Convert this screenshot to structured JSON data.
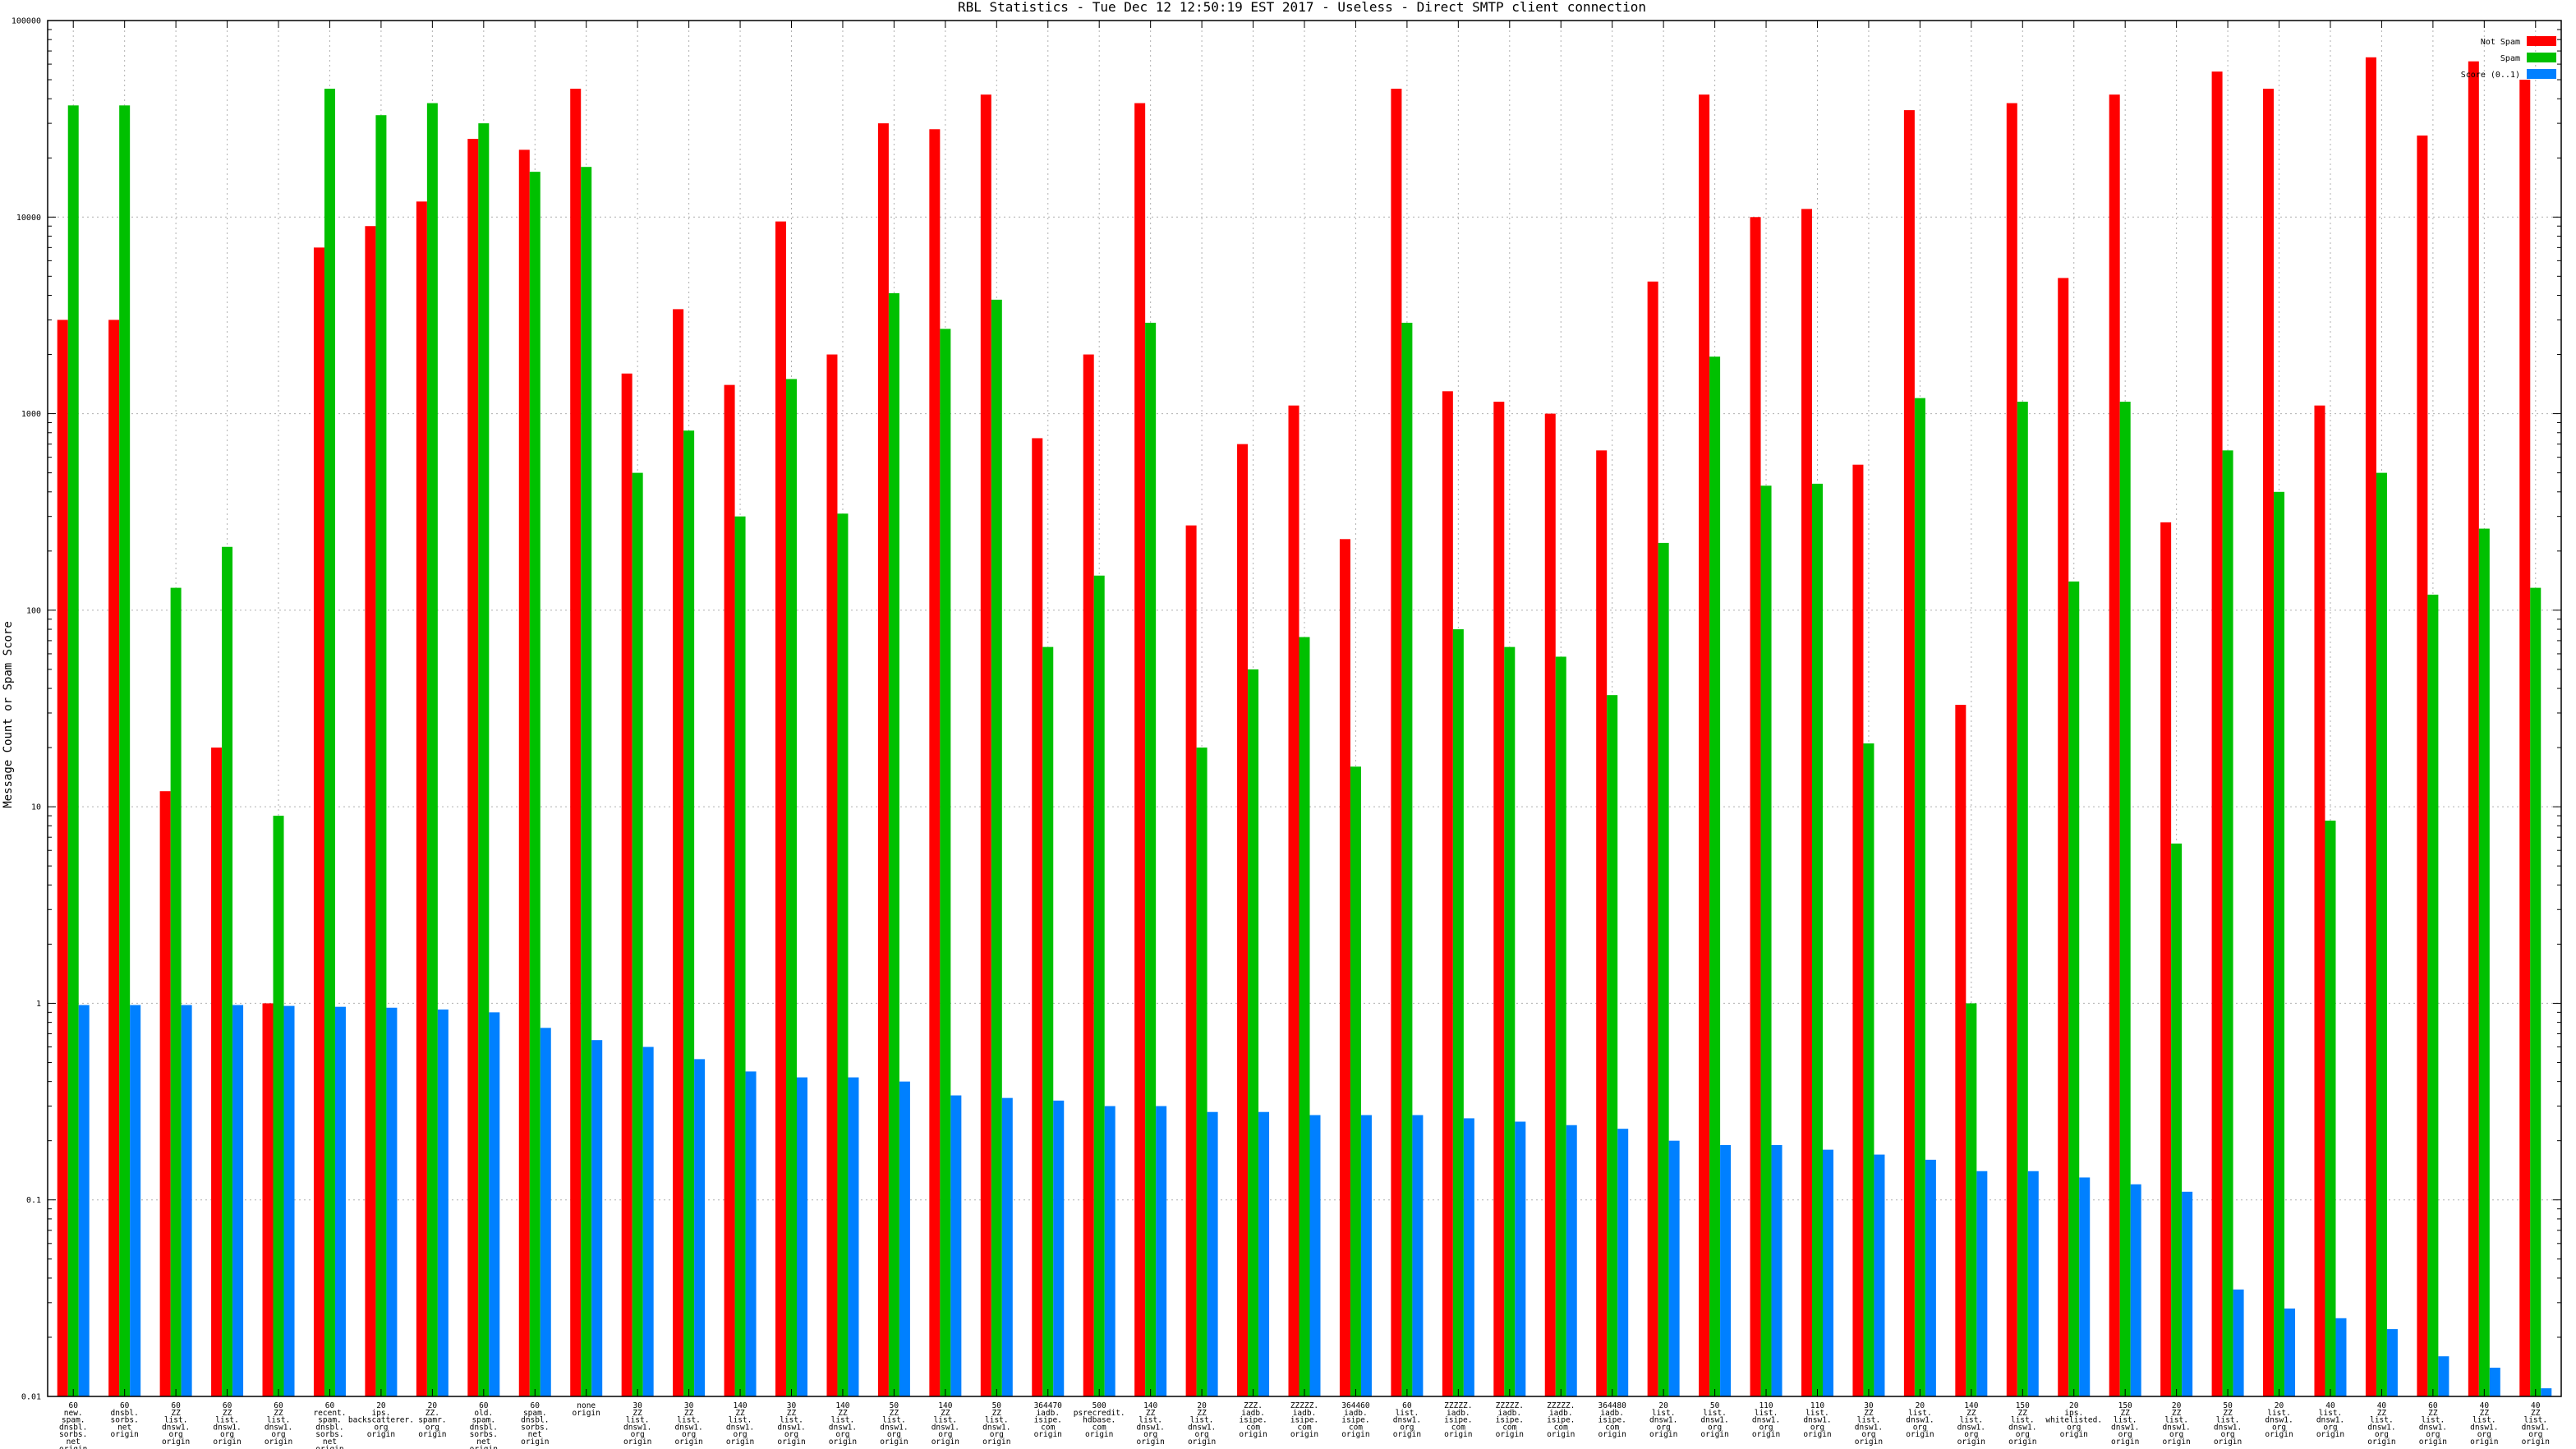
{
  "chart_data": {
    "type": "bar",
    "title": "RBL Statistics - Tue Dec 12 12:50:19 EST 2017 - Useless - Direct SMTP client connection",
    "xlabel": "",
    "ylabel": "Message Count or Spam Score",
    "yscale": "log",
    "ylim": [
      0.01,
      100000
    ],
    "y_ticks": [
      "0.01",
      "0.1",
      "1",
      "10",
      "100",
      "1000",
      "10000",
      "100000"
    ],
    "grid": true,
    "legend_position": "top-right",
    "series_colors": [
      "#ff0000",
      "#00c000",
      "#0080ff"
    ],
    "categories": [
      [
        "60",
        "new.",
        "spam.",
        "dnsbl.",
        "sorbs.",
        "net",
        "origin"
      ],
      [
        "60",
        "dnsbl.",
        "sorbs.",
        "net",
        "origin"
      ],
      [
        "60",
        "ZZ",
        "list.",
        "dnsw1.",
        "org",
        "origin"
      ],
      [
        "60",
        "ZZ",
        "list.",
        "dnsw1.",
        "org",
        "origin"
      ],
      [
        "60",
        "ZZ",
        "list.",
        "dnsw1.",
        "org",
        "origin"
      ],
      [
        "60",
        "recent.",
        "spam.",
        "dnsbl.",
        "sorbs.",
        "net",
        "origin"
      ],
      [
        "20",
        "ips.",
        "backscatterer.",
        "org",
        "origin"
      ],
      [
        "20",
        "ZZ.",
        "spamr.",
        "org",
        "origin"
      ],
      [
        "60",
        "old.",
        "spam.",
        "dnsbl.",
        "sorbs.",
        "net",
        "origin"
      ],
      [
        "60",
        "spam.",
        "dnsbl.",
        "sorbs.",
        "net",
        "origin"
      ],
      [
        "none",
        "origin"
      ],
      [
        "30",
        "ZZ",
        "list.",
        "dnsw1.",
        "org",
        "origin"
      ],
      [
        "30",
        "ZZ",
        "list.",
        "dnsw1.",
        "org",
        "origin"
      ],
      [
        "140",
        "ZZ",
        "list.",
        "dnsw1.",
        "org",
        "origin"
      ],
      [
        "30",
        "ZZ",
        "list.",
        "dnsw1.",
        "org",
        "origin"
      ],
      [
        "140",
        "ZZ",
        "list.",
        "dnsw1.",
        "org",
        "origin"
      ],
      [
        "50",
        "ZZ",
        "list.",
        "dnsw1.",
        "org",
        "origin"
      ],
      [
        "140",
        "ZZ",
        "list.",
        "dnsw1.",
        "org",
        "origin"
      ],
      [
        "50",
        "ZZ",
        "list.",
        "dnsw1.",
        "org",
        "origin"
      ],
      [
        "364470",
        "iadb.",
        "isipe.",
        "com",
        "origin"
      ],
      [
        "500",
        "psrecredit.",
        "hdbase.",
        "com",
        "origin"
      ],
      [
        "140",
        "ZZ",
        "list.",
        "dnsw1.",
        "org",
        "origin"
      ],
      [
        "20",
        "ZZ",
        "list.",
        "dnsw1.",
        "org",
        "origin"
      ],
      [
        "ZZZ.",
        "iadb.",
        "isipe.",
        "com",
        "origin"
      ],
      [
        "ZZZZZ.",
        "iadb.",
        "isipe.",
        "com",
        "origin"
      ],
      [
        "364460",
        "iadb.",
        "isipe.",
        "com",
        "origin"
      ],
      [
        "60",
        "list.",
        "dnsw1.",
        "org",
        "origin"
      ],
      [
        "ZZZZZ.",
        "iadb.",
        "isipe.",
        "com",
        "origin"
      ],
      [
        "ZZZZZ.",
        "iadb.",
        "isipe.",
        "com",
        "origin"
      ],
      [
        "ZZZZZ.",
        "iadb.",
        "isipe.",
        "com",
        "origin"
      ],
      [
        "364480",
        "iadb.",
        "isipe.",
        "com",
        "origin"
      ],
      [
        "20",
        "list.",
        "dnsw1.",
        "org",
        "origin"
      ],
      [
        "50",
        "list.",
        "dnsw1.",
        "org",
        "origin"
      ],
      [
        "110",
        "list.",
        "dnsw1.",
        "org",
        "origin"
      ],
      [
        "110",
        "list.",
        "dnsw1.",
        "org",
        "origin"
      ],
      [
        "30",
        "ZZ",
        "list.",
        "dnsw1.",
        "org",
        "origin"
      ],
      [
        "20",
        "list.",
        "dnsw1.",
        "org",
        "origin"
      ],
      [
        "140",
        "ZZ",
        "list.",
        "dnsw1.",
        "org",
        "origin"
      ],
      [
        "150",
        "ZZ",
        "list.",
        "dnsw1.",
        "org",
        "origin"
      ],
      [
        "20",
        "ips.",
        "whitelisted.",
        "org",
        "origin"
      ],
      [
        "150",
        "ZZ",
        "list.",
        "dnsw1.",
        "org",
        "origin"
      ],
      [
        "20",
        "ZZ",
        "list.",
        "dnsw1.",
        "org",
        "origin"
      ],
      [
        "50",
        "ZZ",
        "list.",
        "dnsw1.",
        "org",
        "origin"
      ],
      [
        "20",
        "list.",
        "dnsw1.",
        "org",
        "origin"
      ],
      [
        "40",
        "list.",
        "dnsw1.",
        "org",
        "origin"
      ],
      [
        "40",
        "ZZ",
        "list.",
        "dnsw1.",
        "org",
        "origin"
      ],
      [
        "60",
        "ZZ",
        "list.",
        "dnsw1.",
        "org",
        "origin"
      ],
      [
        "40",
        "ZZ",
        "list.",
        "dnsw1.",
        "org",
        "origin"
      ],
      [
        "40",
        "ZZ",
        "list.",
        "dnsw1.",
        "org",
        "origin"
      ]
    ],
    "series": [
      {
        "name": "Not Spam",
        "values": [
          3000,
          3000,
          12,
          20,
          1,
          7000,
          9000,
          12000,
          25000,
          22000,
          45000,
          1600,
          3400,
          1400,
          9500,
          2000,
          30000,
          28000,
          42000,
          750,
          2000,
          38000,
          270,
          700,
          1100,
          230,
          45000,
          1300,
          1150,
          1000,
          650,
          4700,
          42000,
          10000,
          11000,
          550,
          35000,
          33,
          38000,
          4900,
          42000,
          280,
          55000,
          45000,
          1100,
          65000,
          26000,
          62000,
          50000
        ]
      },
      {
        "name": "Spam",
        "values": [
          37000,
          37000,
          130,
          210,
          9,
          45000,
          33000,
          38000,
          30000,
          17000,
          18000,
          500,
          820,
          300,
          1500,
          310,
          4100,
          2700,
          3800,
          65,
          150,
          2900,
          20,
          50,
          73,
          16,
          2900,
          80,
          65,
          58,
          37,
          220,
          1950,
          430,
          440,
          21,
          1200,
          1,
          1150,
          140,
          1150,
          6.5,
          650,
          400,
          8.5,
          500,
          120,
          260,
          130
        ]
      },
      {
        "name": "Score (0..1)",
        "values": [
          0.98,
          0.98,
          0.98,
          0.98,
          0.97,
          0.96,
          0.95,
          0.93,
          0.9,
          0.75,
          0.65,
          0.6,
          0.52,
          0.45,
          0.42,
          0.42,
          0.4,
          0.34,
          0.33,
          0.32,
          0.3,
          0.3,
          0.28,
          0.28,
          0.27,
          0.27,
          0.27,
          0.26,
          0.25,
          0.24,
          0.23,
          0.2,
          0.19,
          0.19,
          0.18,
          0.17,
          0.16,
          0.14,
          0.14,
          0.13,
          0.12,
          0.11,
          0.035,
          0.028,
          0.025,
          0.022,
          0.016,
          0.014,
          0.011
        ]
      }
    ]
  }
}
